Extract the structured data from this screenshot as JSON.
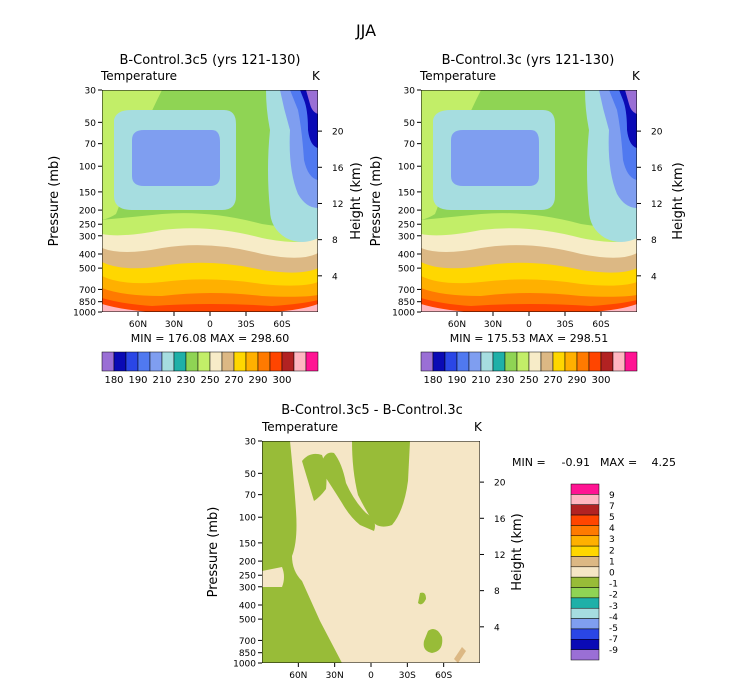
{
  "page_title": "JJA",
  "fill_palette": [
    "#9a6fd5",
    "#0a0ab5",
    "#2a46e6",
    "#5079f0",
    "#7f9ef0",
    "#a6dde0",
    "#1fb0a8",
    "#8fd454",
    "#c2ee68",
    "#f7ecc8",
    "#dcb884",
    "#ffd700",
    "#ffb000",
    "#ff7a00",
    "#ff4500",
    "#b22222",
    "#ffb6c1",
    "#ff1493"
  ],
  "diff_palette": [
    "#9a6fd5",
    "#0a0ab5",
    "#2a46e6",
    "#7f9ef0",
    "#a6dde0",
    "#1fb0a8",
    "#8fd454",
    "#98bc38",
    "#f5e6c6",
    "#dcb884",
    "#ffd700",
    "#ffb000",
    "#ff7a00",
    "#ff4500",
    "#b22222",
    "#ffb6c1",
    "#ff1493"
  ],
  "chart_data": [
    {
      "id": "left",
      "type": "heatmap",
      "title": "B-Control.3c5 (yrs 121-130)",
      "variable": "Temperature",
      "units": "K",
      "ylabel": "Pressure (mb)",
      "ylabel_right": "Height (km)",
      "pressure_ticks": [
        "30",
        "50",
        "70",
        "100",
        "150",
        "200",
        "250",
        "300",
        "400",
        "500",
        "700",
        "850",
        "1000"
      ],
      "height_ticks": [
        "20",
        "16",
        "12",
        "8",
        "4"
      ],
      "lat_ticks": [
        "60N",
        "30N",
        "0",
        "30S",
        "60S"
      ],
      "stats": "MIN = 176.08   MAX = 298.60",
      "colorbar_labels": [
        "180",
        "190",
        "210",
        "230",
        "250",
        "270",
        "290",
        "300"
      ],
      "contour_levels_K": [
        180,
        185,
        190,
        195,
        200,
        205,
        210,
        220,
        230,
        240,
        250,
        260,
        270,
        280,
        285,
        290,
        295,
        300
      ]
    },
    {
      "id": "right",
      "type": "heatmap",
      "title": "B-Control.3c (yrs 121-130)",
      "variable": "Temperature",
      "units": "K",
      "ylabel": "Pressure (mb)",
      "ylabel_right": "Height (km)",
      "pressure_ticks": [
        "30",
        "50",
        "70",
        "100",
        "150",
        "200",
        "250",
        "300",
        "400",
        "500",
        "700",
        "850",
        "1000"
      ],
      "height_ticks": [
        "20",
        "16",
        "12",
        "8",
        "4"
      ],
      "lat_ticks": [
        "60N",
        "30N",
        "0",
        "30S",
        "60S"
      ],
      "stats": "MIN = 175.53   MAX = 298.51",
      "colorbar_labels": [
        "180",
        "190",
        "210",
        "230",
        "250",
        "270",
        "290",
        "300"
      ],
      "contour_levels_K": [
        180,
        185,
        190,
        195,
        200,
        205,
        210,
        220,
        230,
        240,
        250,
        260,
        270,
        280,
        285,
        290,
        295,
        300
      ]
    },
    {
      "id": "diff",
      "type": "heatmap",
      "title": "B-Control.3c5 - B-Control.3c",
      "variable": "Temperature",
      "units": "K",
      "ylabel": "Pressure (mb)",
      "ylabel_right": "Height (km)",
      "pressure_ticks": [
        "30",
        "50",
        "70",
        "100",
        "150",
        "200",
        "250",
        "300",
        "400",
        "500",
        "700",
        "850",
        "1000"
      ],
      "height_ticks": [
        "20",
        "16",
        "12",
        "8",
        "4"
      ],
      "lat_ticks": [
        "60N",
        "30N",
        "0",
        "30S",
        "60S"
      ],
      "stats_min_label": "MIN =",
      "stats_min": "-0.91",
      "stats_max_label": "MAX =",
      "stats_max": "4.25",
      "colorbar_labels": [
        "9",
        "7",
        "5",
        "4",
        "3",
        "2",
        "1",
        "0",
        "-1",
        "-2",
        "-3",
        "-4",
        "-5",
        "-7",
        "-9"
      ]
    }
  ]
}
